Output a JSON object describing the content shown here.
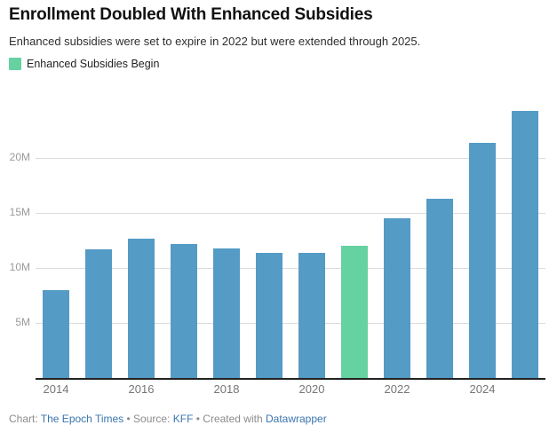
{
  "header": {
    "title": "Enrollment Doubled With Enhanced Subsidies",
    "subtitle": "Enhanced subsidies were set to expire in 2022 but were extended through 2025."
  },
  "legend": {
    "label": "Enhanced Subsidies Begin",
    "swatch_color": "#66d1a1"
  },
  "chart_data": {
    "type": "bar",
    "title": "Enrollment Doubled With Enhanced Subsidies",
    "subtitle": "Enhanced subsidies were set to expire in 2022 but were extended through 2025.",
    "categories": [
      "2014",
      "2015",
      "2016",
      "2017",
      "2018",
      "2019",
      "2020",
      "2021",
      "2022",
      "2023",
      "2024",
      "2025"
    ],
    "values": [
      8.0,
      11.7,
      12.7,
      12.2,
      11.8,
      11.4,
      11.4,
      12.0,
      14.5,
      16.3,
      21.4,
      24.3
    ],
    "unit": "M",
    "bar_color": "#549bc6",
    "highlight_index": 7,
    "highlight_color": "#66d1a1",
    "highlight_meaning": "Enhanced Subsidies Begin",
    "y_axis": {
      "tick_values": [
        5,
        10,
        15,
        20
      ],
      "tick_labels": [
        "5M",
        "10M",
        "15M",
        "20M"
      ],
      "range": [
        0,
        25
      ]
    },
    "x_axis": {
      "tick_labels": [
        "2014",
        "2016",
        "2018",
        "2020",
        "2022",
        "2024"
      ],
      "tick_indices": [
        0,
        2,
        4,
        6,
        8,
        10
      ]
    },
    "grid": "horizontal",
    "legend_position": "top-left"
  },
  "footer": {
    "chart_label": "Chart: ",
    "chart_credit": "The Epoch Times",
    "separator1": " • Source: ",
    "source": "KFF",
    "separator2": " • Created with ",
    "tool": "Datawrapper",
    "link_color": "#3b75b0"
  }
}
